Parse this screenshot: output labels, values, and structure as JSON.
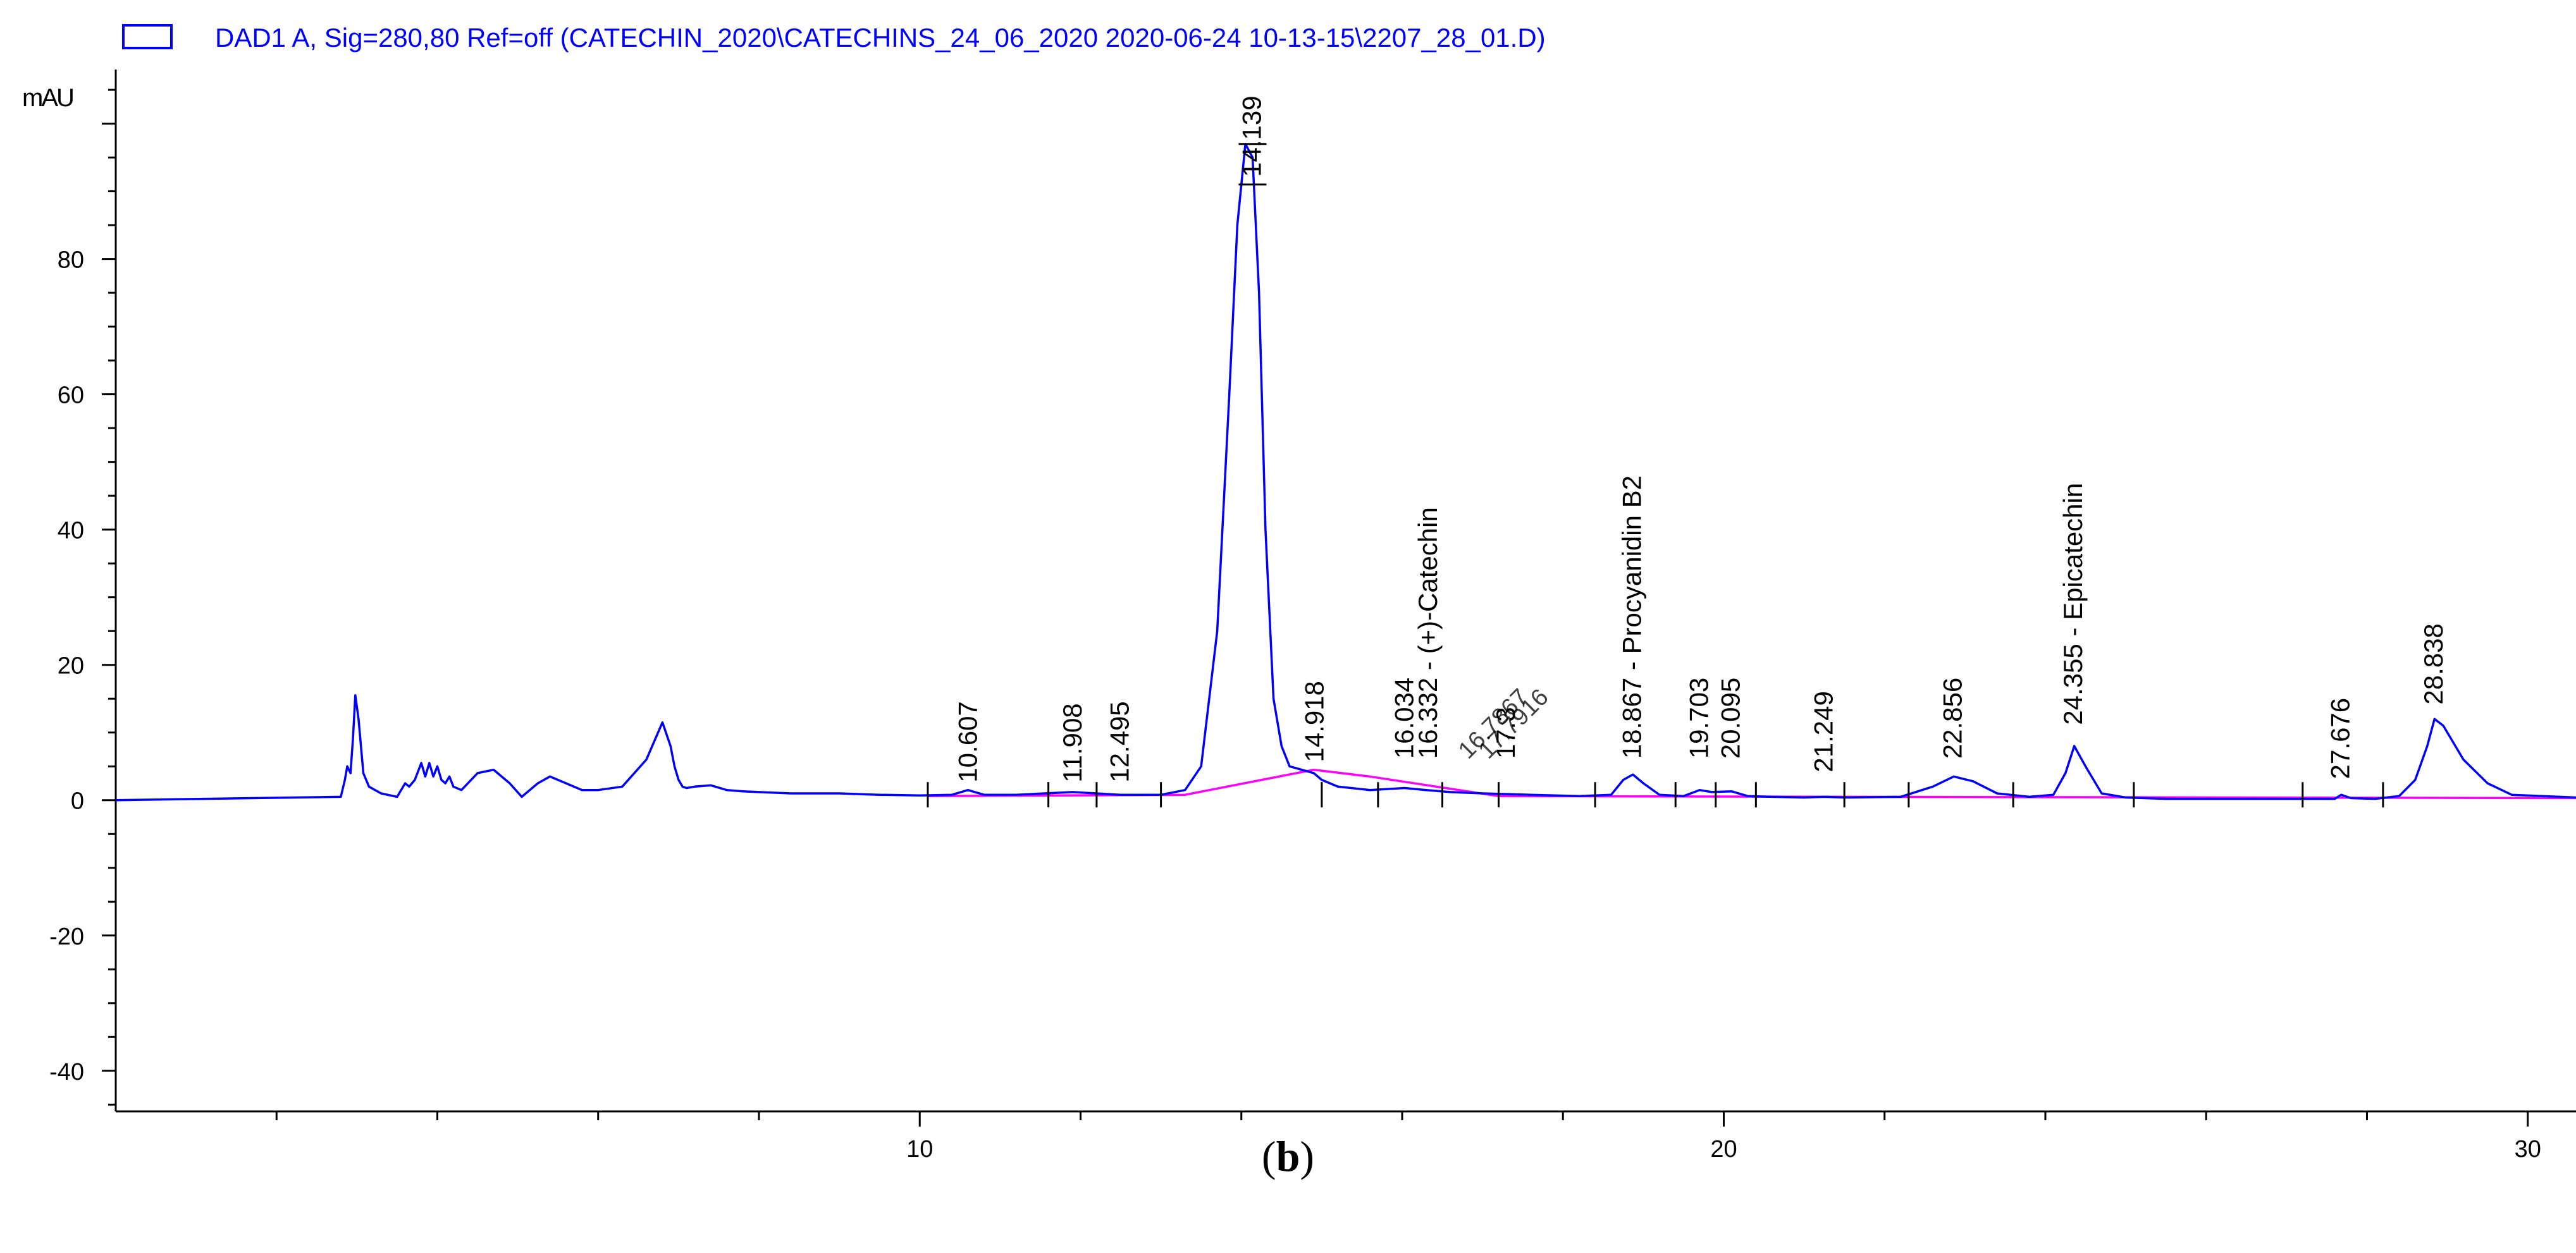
{
  "legend": {
    "label": "DAD1 A, Sig=280,80 Ref=off (CATECHIN_2020\\CATECHINS_24_06_2020 2020-06-24 10-13-15\\2207_28_01.D)",
    "color": "#0000ff"
  },
  "caption": {
    "open": "(",
    "letter": "b",
    "close": ")"
  },
  "chart_data": {
    "type": "line",
    "ylabel": "mAU",
    "xlabel": "",
    "xlim": [
      0,
      30.6
    ],
    "ylim": [
      -46,
      108
    ],
    "xticks": [
      10,
      20,
      30
    ],
    "yticks": [
      -40,
      -20,
      0,
      20,
      40,
      60,
      80
    ],
    "signal_color": "#0000ff",
    "baseline_color": "#ff00ff",
    "signal": {
      "x": [
        0,
        2.8,
        2.85,
        2.88,
        2.92,
        2.95,
        2.98,
        3.02,
        3.08,
        3.15,
        3.3,
        3.5,
        3.6,
        3.65,
        3.72,
        3.8,
        3.85,
        3.9,
        3.95,
        4.0,
        4.05,
        4.1,
        4.15,
        4.2,
        4.3,
        4.5,
        4.7,
        4.9,
        5.05,
        5.15,
        5.25,
        5.4,
        5.6,
        5.8,
        6.0,
        6.3,
        6.6,
        6.8,
        6.9,
        6.95,
        7.0,
        7.05,
        7.1,
        7.2,
        7.4,
        7.6,
        7.8,
        8.0,
        8.4,
        9.0,
        9.5,
        10.0,
        10.4,
        10.6,
        10.8,
        11.2,
        11.9,
        12.5,
        13.0,
        13.3,
        13.5,
        13.7,
        13.85,
        13.95,
        14.05,
        14.14,
        14.22,
        14.3,
        14.4,
        14.5,
        14.6,
        14.75,
        14.9,
        15.0,
        15.2,
        15.6,
        16.03,
        16.3,
        16.6,
        17.0,
        17.6,
        18.2,
        18.6,
        18.75,
        18.87,
        19.0,
        19.2,
        19.5,
        19.7,
        19.85,
        20.1,
        20.3,
        20.6,
        21.0,
        21.25,
        21.5,
        22.2,
        22.6,
        22.86,
        23.1,
        23.4,
        23.8,
        24.1,
        24.25,
        24.36,
        24.5,
        24.7,
        25.0,
        25.5,
        26.5,
        27.3,
        27.6,
        27.68,
        27.8,
        28.1,
        28.4,
        28.6,
        28.75,
        28.84,
        28.95,
        29.2,
        29.5,
        29.8,
        30.6
      ],
      "y": [
        0,
        0.5,
        3,
        5,
        4,
        9,
        15.5,
        12,
        4,
        2,
        1,
        0.5,
        2.5,
        2,
        3,
        5.5,
        3.5,
        5.5,
        3.5,
        5,
        3,
        2.5,
        3.5,
        2,
        1.5,
        4,
        4.5,
        2.5,
        0.5,
        1.5,
        2.5,
        3.5,
        2.5,
        1.5,
        1.5,
        2,
        6,
        11.5,
        8,
        5,
        3,
        2,
        1.8,
        2,
        2.2,
        1.5,
        1.3,
        1.2,
        1,
        1,
        0.8,
        0.7,
        0.8,
        1.5,
        0.8,
        0.8,
        1.2,
        0.8,
        0.8,
        1.5,
        5,
        25,
        60,
        85,
        97,
        95,
        75,
        40,
        15,
        8,
        5,
        4.5,
        4,
        3,
        2,
        1.5,
        1.8,
        1.5,
        1.2,
        1,
        0.8,
        0.6,
        0.8,
        3,
        3.8,
        2.5,
        0.8,
        0.6,
        1.5,
        1.2,
        1.3,
        0.6,
        0.5,
        0.4,
        0.5,
        0.4,
        0.5,
        2,
        3.5,
        2.8,
        1,
        0.5,
        0.8,
        4,
        8,
        5,
        1,
        0.4,
        0.2,
        0.2,
        0.2,
        0.2,
        0.8,
        0.3,
        0.2,
        0.6,
        3,
        8,
        12,
        11,
        6,
        2.5,
        0.8,
        0.4
      ]
    },
    "baseline": {
      "x": [
        10.1,
        13.3,
        14.9,
        15.6,
        17.2,
        30.6
      ],
      "y": [
        0.6,
        0.8,
        4.5,
        3.5,
        0.6,
        0.3
      ]
    },
    "integration_ticks_x": [
      10.1,
      11.6,
      12.2,
      13.0,
      15.0,
      15.7,
      16.5,
      17.2,
      18.4,
      19.4,
      19.9,
      20.4,
      21.5,
      22.3,
      23.6,
      25.1,
      27.2,
      28.2
    ],
    "peak_labels": [
      {
        "x": 10.607,
        "y": 1.5,
        "text": "10.607"
      },
      {
        "x": 11.908,
        "y": 1.5,
        "text": "11.908"
      },
      {
        "x": 12.495,
        "y": 1.5,
        "text": "12.495"
      },
      {
        "x": 14.139,
        "y": 91,
        "text": "14.139"
      },
      {
        "x": 14.918,
        "y": 4.5,
        "text": "14.918"
      },
      {
        "x": 16.034,
        "y": 5,
        "text": "16.034"
      },
      {
        "x": 16.332,
        "y": 5,
        "text": "16.332 - (+)-Catechin"
      },
      {
        "x": 17.3,
        "y": 5,
        "text": "17.3"
      },
      {
        "x": 18.867,
        "y": 5,
        "text": "18.867 - Procyanidin B2"
      },
      {
        "x": 19.703,
        "y": 5,
        "text": "19.703"
      },
      {
        "x": 20.095,
        "y": 5,
        "text": "20.095"
      },
      {
        "x": 21.249,
        "y": 3,
        "text": "21.249"
      },
      {
        "x": 22.856,
        "y": 5,
        "text": "22.856"
      },
      {
        "x": 24.355,
        "y": 10,
        "text": "24.355 - Epicatechin"
      },
      {
        "x": 27.676,
        "y": 2,
        "text": "27.676"
      },
      {
        "x": 28.838,
        "y": 13,
        "text": "28.838"
      }
    ],
    "overlap_labels": [
      {
        "x": 16.9,
        "y": 5,
        "text": "16.7867"
      },
      {
        "x": 17.15,
        "y": 5,
        "text": "17.7916"
      }
    ]
  }
}
